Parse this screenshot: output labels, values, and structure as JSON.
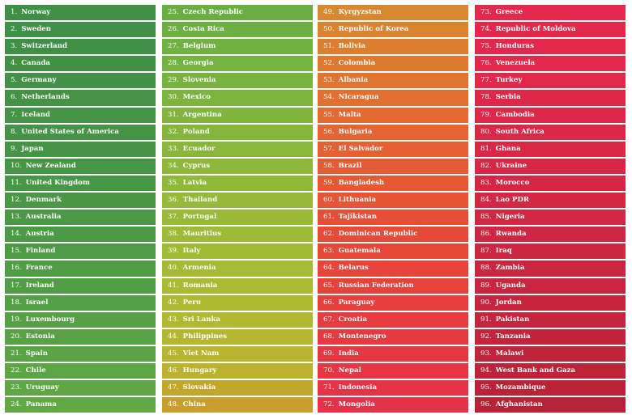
{
  "columns": [
    {
      "entries": [
        {
          "rank": "1.",
          "name": "Norway",
          "color": "#3f8f46"
        },
        {
          "rank": "2.",
          "name": "Sweden",
          "color": "#3f8f46"
        },
        {
          "rank": "3.",
          "name": "Switzerland",
          "color": "#408f46"
        },
        {
          "rank": "4.",
          "name": "Canada",
          "color": "#419046"
        },
        {
          "rank": "5.",
          "name": "Germany",
          "color": "#429146"
        },
        {
          "rank": "6.",
          "name": "Netherlands",
          "color": "#439246"
        },
        {
          "rank": "7.",
          "name": "Iceland",
          "color": "#449346"
        },
        {
          "rank": "8.",
          "name": "United States of America",
          "color": "#459446"
        },
        {
          "rank": "9.",
          "name": "Japan",
          "color": "#469546"
        },
        {
          "rank": "10.",
          "name": "New Zealand",
          "color": "#479646"
        },
        {
          "rank": "11.",
          "name": "United Kingdom",
          "color": "#489746"
        },
        {
          "rank": "12.",
          "name": "Denmark",
          "color": "#4a9846"
        },
        {
          "rank": "13.",
          "name": "Australia",
          "color": "#4b9946"
        },
        {
          "rank": "14.",
          "name": "Austria",
          "color": "#4c9a46"
        },
        {
          "rank": "15.",
          "name": "Finland",
          "color": "#4e9b46"
        },
        {
          "rank": "16.",
          "name": "France",
          "color": "#509d46"
        },
        {
          "rank": "17.",
          "name": "Ireland",
          "color": "#529e46"
        },
        {
          "rank": "18.",
          "name": "Israel",
          "color": "#54a046"
        },
        {
          "rank": "19.",
          "name": "Luxembourg",
          "color": "#56a146"
        },
        {
          "rank": "20.",
          "name": "Estonia",
          "color": "#58a245"
        },
        {
          "rank": "21.",
          "name": "Spain",
          "color": "#5aa445"
        },
        {
          "rank": "22.",
          "name": "Chile",
          "color": "#5ca545"
        },
        {
          "rank": "23.",
          "name": "Uruguay",
          "color": "#5fa745"
        },
        {
          "rank": "24.",
          "name": "Panama",
          "color": "#62a845"
        }
      ]
    },
    {
      "entries": [
        {
          "rank": "25.",
          "name": "Czech Republic",
          "color": "#6aae43"
        },
        {
          "rank": "26.",
          "name": "Costa Rica",
          "color": "#6daf42"
        },
        {
          "rank": "27.",
          "name": "Belgium",
          "color": "#71b141"
        },
        {
          "rank": "28.",
          "name": "Georgia",
          "color": "#75b240"
        },
        {
          "rank": "29.",
          "name": "Slovenia",
          "color": "#79b33f"
        },
        {
          "rank": "30.",
          "name": "Mexico",
          "color": "#7db43e"
        },
        {
          "rank": "31.",
          "name": "Argentina",
          "color": "#81b53d"
        },
        {
          "rank": "32.",
          "name": "Poland",
          "color": "#85b63c"
        },
        {
          "rank": "33.",
          "name": "Ecuador",
          "color": "#89b73b"
        },
        {
          "rank": "34.",
          "name": "Cyprus",
          "color": "#8db83a"
        },
        {
          "rank": "35.",
          "name": "Latvia",
          "color": "#91b939"
        },
        {
          "rank": "36.",
          "name": "Thailand",
          "color": "#95ba38"
        },
        {
          "rank": "37.",
          "name": "Portugal",
          "color": "#99ba37"
        },
        {
          "rank": "38.",
          "name": "Mauritius",
          "color": "#9dbb36"
        },
        {
          "rank": "39.",
          "name": "Italy",
          "color": "#a1bb35"
        },
        {
          "rank": "40.",
          "name": "Armenia",
          "color": "#a5bb34"
        },
        {
          "rank": "41.",
          "name": "Romania",
          "color": "#a9bb33"
        },
        {
          "rank": "42.",
          "name": "Peru",
          "color": "#adba32"
        },
        {
          "rank": "43.",
          "name": "Sri Lanka",
          "color": "#b1b931"
        },
        {
          "rank": "44.",
          "name": "Philippines",
          "color": "#b5b730"
        },
        {
          "rank": "45.",
          "name": "Viet Nam",
          "color": "#b9b52f"
        },
        {
          "rank": "46.",
          "name": "Hungary",
          "color": "#bdb22e"
        },
        {
          "rank": "47.",
          "name": "Slovakia",
          "color": "#c1a82d"
        },
        {
          "rank": "48.",
          "name": "China",
          "color": "#c99e2e"
        }
      ]
    },
    {
      "entries": [
        {
          "rank": "49.",
          "name": "Kyrgyzstan",
          "color": "#d8882f"
        },
        {
          "rank": "50.",
          "name": "Republic of Korea",
          "color": "#db832f"
        },
        {
          "rank": "51.",
          "name": "Bolivia",
          "color": "#dd7e2f"
        },
        {
          "rank": "52.",
          "name": "Colombia",
          "color": "#df792f"
        },
        {
          "rank": "53.",
          "name": "Albania",
          "color": "#e1742f"
        },
        {
          "rank": "54.",
          "name": "Nicaragua",
          "color": "#e26f30"
        },
        {
          "rank": "55.",
          "name": "Malta",
          "color": "#e36a30"
        },
        {
          "rank": "56.",
          "name": "Bulgaria",
          "color": "#e46531"
        },
        {
          "rank": "57.",
          "name": "El Salvador",
          "color": "#e56032"
        },
        {
          "rank": "58.",
          "name": "Brazil",
          "color": "#e55b33"
        },
        {
          "rank": "59.",
          "name": "Bangladesh",
          "color": "#e65734"
        },
        {
          "rank": "60.",
          "name": "Lithuania",
          "color": "#e65335"
        },
        {
          "rank": "61.",
          "name": "Tajikistan",
          "color": "#e64f36"
        },
        {
          "rank": "62.",
          "name": "Dominican Republic",
          "color": "#e64b37"
        },
        {
          "rank": "63.",
          "name": "Guatemala",
          "color": "#e64838"
        },
        {
          "rank": "64.",
          "name": "Belarus",
          "color": "#e64539"
        },
        {
          "rank": "65.",
          "name": "Russian Federation",
          "color": "#e6423a"
        },
        {
          "rank": "66.",
          "name": "Paraguay",
          "color": "#e63f3c"
        },
        {
          "rank": "67.",
          "name": "Croatia",
          "color": "#e63c3e"
        },
        {
          "rank": "68.",
          "name": "Montenegro",
          "color": "#e63a40"
        },
        {
          "rank": "69.",
          "name": "India",
          "color": "#e63842"
        },
        {
          "rank": "70.",
          "name": "Nepal",
          "color": "#e63644"
        },
        {
          "rank": "71.",
          "name": "Indonesia",
          "color": "#e63446"
        },
        {
          "rank": "72.",
          "name": "Mongolia",
          "color": "#e63248"
        }
      ]
    },
    {
      "entries": [
        {
          "rank": "73.",
          "name": "Greece",
          "color": "#e5284e"
        },
        {
          "rank": "74.",
          "name": "Republic of Moldova",
          "color": "#e4284d"
        },
        {
          "rank": "75.",
          "name": "Honduras",
          "color": "#e3284c"
        },
        {
          "rank": "76.",
          "name": "Venezuela",
          "color": "#e2284b"
        },
        {
          "rank": "77.",
          "name": "Turkey",
          "color": "#e1284a"
        },
        {
          "rank": "78.",
          "name": "Serbia",
          "color": "#df2849"
        },
        {
          "rank": "79.",
          "name": "Cambodia",
          "color": "#dd2848"
        },
        {
          "rank": "80.",
          "name": "South Africa",
          "color": "#db2847"
        },
        {
          "rank": "81.",
          "name": "Ghana",
          "color": "#d92846"
        },
        {
          "rank": "82.",
          "name": "Ukraine",
          "color": "#d72745"
        },
        {
          "rank": "83.",
          "name": "Morocco",
          "color": "#d52744"
        },
        {
          "rank": "84.",
          "name": "Lao PDR",
          "color": "#d32743"
        },
        {
          "rank": "85.",
          "name": "Nigeria",
          "color": "#d12742"
        },
        {
          "rank": "86.",
          "name": "Rwanda",
          "color": "#cf2641"
        },
        {
          "rank": "87.",
          "name": "Iraq",
          "color": "#cd2640"
        },
        {
          "rank": "88.",
          "name": "Zambia",
          "color": "#cb263f"
        },
        {
          "rank": "89.",
          "name": "Uganda",
          "color": "#c9253e"
        },
        {
          "rank": "90.",
          "name": "Jordan",
          "color": "#c7253d"
        },
        {
          "rank": "91.",
          "name": "Pakistan",
          "color": "#c4243c"
        },
        {
          "rank": "92.",
          "name": "Tanzania",
          "color": "#c2243b"
        },
        {
          "rank": "93.",
          "name": "Malawi",
          "color": "#c0233a"
        },
        {
          "rank": "94.",
          "name": "West Bank and Gaza",
          "color": "#bd2339"
        },
        {
          "rank": "95.",
          "name": "Mozambique",
          "color": "#bb2238"
        },
        {
          "rank": "96.",
          "name": "Afghanistan",
          "color": "#b82237"
        }
      ]
    }
  ]
}
